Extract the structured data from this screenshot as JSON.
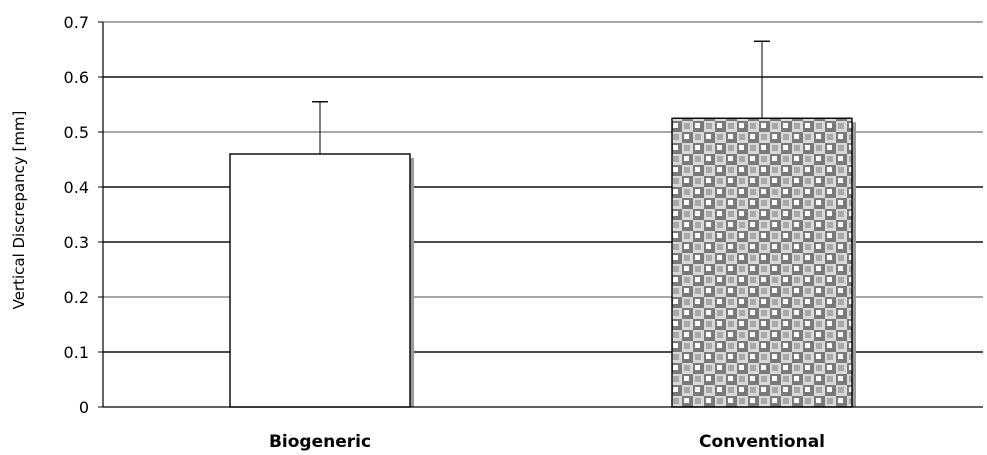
{
  "chart_data": {
    "type": "bar",
    "categories": [
      "Biogeneric",
      "Conventional"
    ],
    "values": [
      0.46,
      0.525
    ],
    "error_bars": [
      0.095,
      0.14
    ],
    "title": "",
    "xlabel": "",
    "ylabel": "Vertical Discrepancy [mm]",
    "ylim": [
      0,
      0.7
    ],
    "yticks": [
      "0",
      "0.1",
      "0.2",
      "0.3",
      "0.4",
      "0.5",
      "0.6",
      "0.7"
    ],
    "grid": true,
    "legend": "none",
    "bar_styles": [
      "solid-white",
      "checkered-gray"
    ]
  }
}
